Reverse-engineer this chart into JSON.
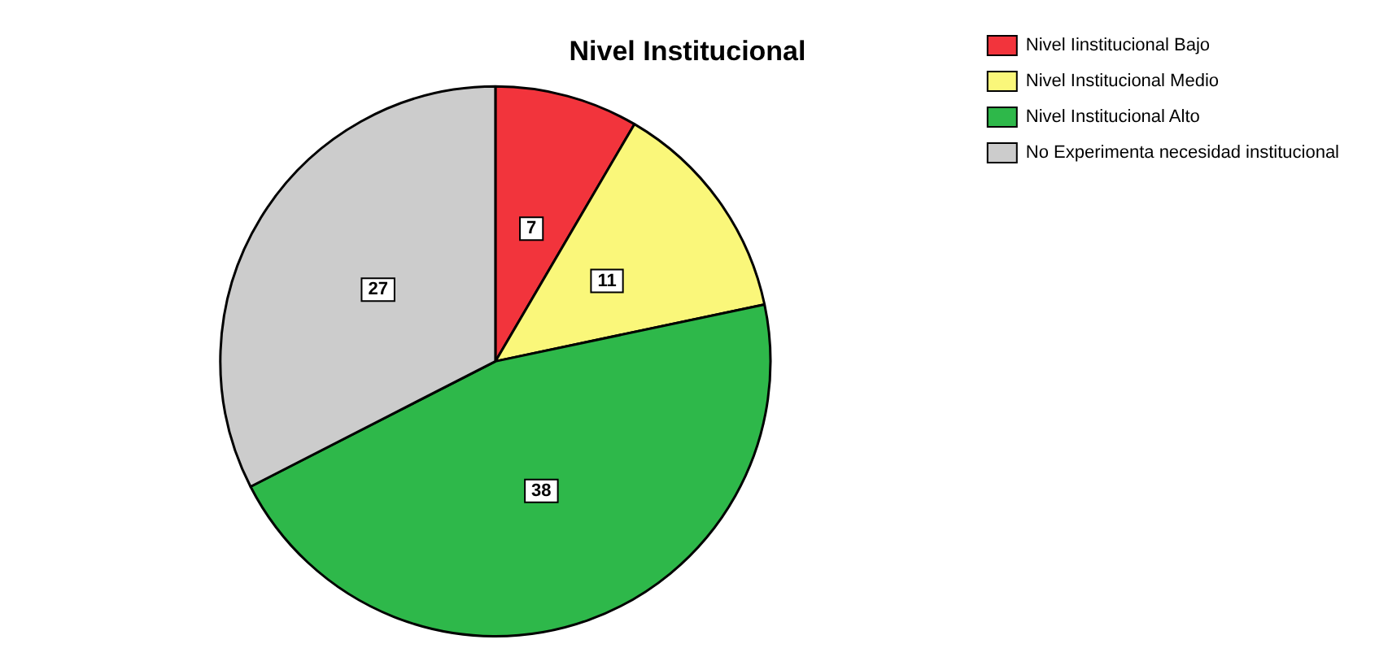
{
  "chart_data": {
    "type": "pie",
    "title": "Nivel Institucional",
    "categories": [
      "Nivel Iinstitucional Bajo",
      "Nivel Institucional Medio",
      "Nivel Institucional Alto",
      "No Experimenta necesidad institucional"
    ],
    "values": [
      7,
      11,
      38,
      27
    ],
    "colors": [
      "#f2343c",
      "#faf77a",
      "#2eb84a",
      "#cccccc"
    ],
    "data_labels": true,
    "legend": "top right"
  }
}
